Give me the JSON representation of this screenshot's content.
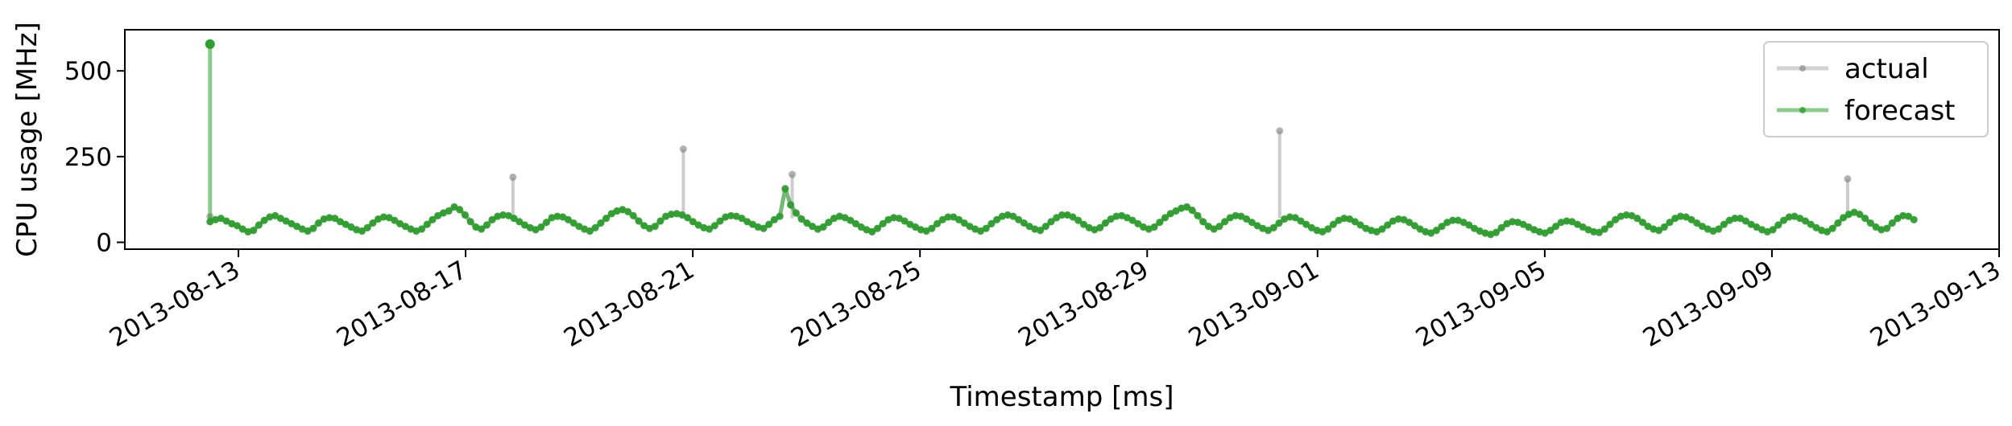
{
  "chart_data": {
    "type": "line",
    "xlabel": "Timestamp [ms]",
    "ylabel": "CPU usage [MHz]",
    "xlim": [
      "2013-08-11",
      "2013-09-13"
    ],
    "ylim": [
      -20,
      620
    ],
    "x_ticks": [
      "2013-08-13",
      "2013-08-17",
      "2013-08-21",
      "2013-08-25",
      "2013-08-29",
      "2013-09-01",
      "2013-09-05",
      "2013-09-09",
      "2013-09-13"
    ],
    "y_ticks": [
      0,
      250,
      500
    ],
    "grid": false,
    "legend_position": "top-right",
    "series": [
      {
        "name": "actual",
        "color": "#7f7f7f",
        "x_start": "2013-08-12 12:00",
        "x_end": "2013-09-11 12:00",
        "values": [
          60,
          66,
          70,
          62,
          54,
          48,
          38,
          30,
          34,
          50,
          64,
          74,
          78,
          70,
          62,
          54,
          46,
          38,
          32,
          40,
          56,
          68,
          72,
          70,
          60,
          52,
          44,
          36,
          32,
          42,
          56,
          68,
          74,
          72,
          64,
          54,
          46,
          38,
          32,
          38,
          52,
          66,
          78,
          86,
          92,
          104,
          96,
          80,
          60,
          44,
          38,
          50,
          66,
          76,
          80,
          78,
          70,
          60,
          50,
          42,
          36,
          44,
          58,
          72,
          76,
          74,
          66,
          56,
          46,
          38,
          32,
          42,
          56,
          70,
          84,
          92,
          96,
          90,
          78,
          62,
          48,
          40,
          46,
          62,
          76,
          82,
          84,
          80,
          72,
          60,
          50,
          42,
          38,
          48,
          62,
          74,
          78,
          76,
          70,
          60,
          52,
          44,
          40,
          52,
          66,
          76,
          158,
          110,
          86,
          68,
          56,
          46,
          38,
          44,
          58,
          70,
          76,
          72,
          64,
          54,
          44,
          36,
          30,
          40,
          54,
          66,
          72,
          70,
          62,
          52,
          44,
          36,
          32,
          40,
          54,
          66,
          74,
          74,
          66,
          56,
          46,
          38,
          32,
          40,
          54,
          66,
          76,
          80,
          76,
          66,
          56,
          46,
          38,
          34,
          46,
          60,
          72,
          80,
          80,
          74,
          64,
          52,
          42,
          36,
          42,
          56,
          68,
          76,
          78,
          72,
          64,
          54,
          44,
          38,
          44,
          58,
          72,
          84,
          92,
          100,
          104,
          94,
          78,
          60,
          46,
          38,
          46,
          60,
          72,
          78,
          76,
          68,
          58,
          48,
          40,
          34,
          42,
          56,
          68,
          74,
          72,
          62,
          52,
          42,
          34,
          30,
          38,
          52,
          64,
          70,
          68,
          60,
          50,
          40,
          34,
          30,
          38,
          50,
          62,
          68,
          66,
          58,
          48,
          38,
          30,
          26,
          34,
          46,
          58,
          64,
          64,
          58,
          50,
          40,
          32,
          26,
          22,
          28,
          42,
          54,
          60,
          58,
          52,
          44,
          36,
          30,
          26,
          34,
          46,
          58,
          62,
          60,
          52,
          44,
          36,
          30,
          28,
          38,
          52,
          66,
          76,
          80,
          78,
          70,
          58,
          46,
          38,
          34,
          44,
          58,
          70,
          76,
          74,
          66,
          56,
          46,
          38,
          32,
          38,
          52,
          64,
          70,
          70,
          62,
          52,
          44,
          36,
          30,
          36,
          50,
          64,
          74,
          76,
          70,
          62,
          52,
          42,
          34,
          30,
          40,
          56,
          72,
          82,
          88,
          82,
          70,
          56,
          44,
          36,
          40,
          56,
          70,
          78,
          76,
          66
        ],
        "outliers": [
          {
            "x": "2013-08-12 12:00",
            "y": 75
          },
          {
            "x": "2013-08-20 20:00",
            "y": 272
          },
          {
            "x": "2013-08-31 08:00",
            "y": 325
          },
          {
            "x": "2013-09-10 08:00",
            "y": 185
          },
          {
            "x": "2013-08-22 18:00",
            "y": 198
          },
          {
            "x": "2013-08-17 20:00",
            "y": 190
          }
        ]
      },
      {
        "name": "forecast",
        "color": "#2ca02c",
        "x_start": "2013-08-12 12:00",
        "x_end": "2013-09-11 12:00",
        "first_value": 578,
        "follows": "actual"
      }
    ]
  }
}
